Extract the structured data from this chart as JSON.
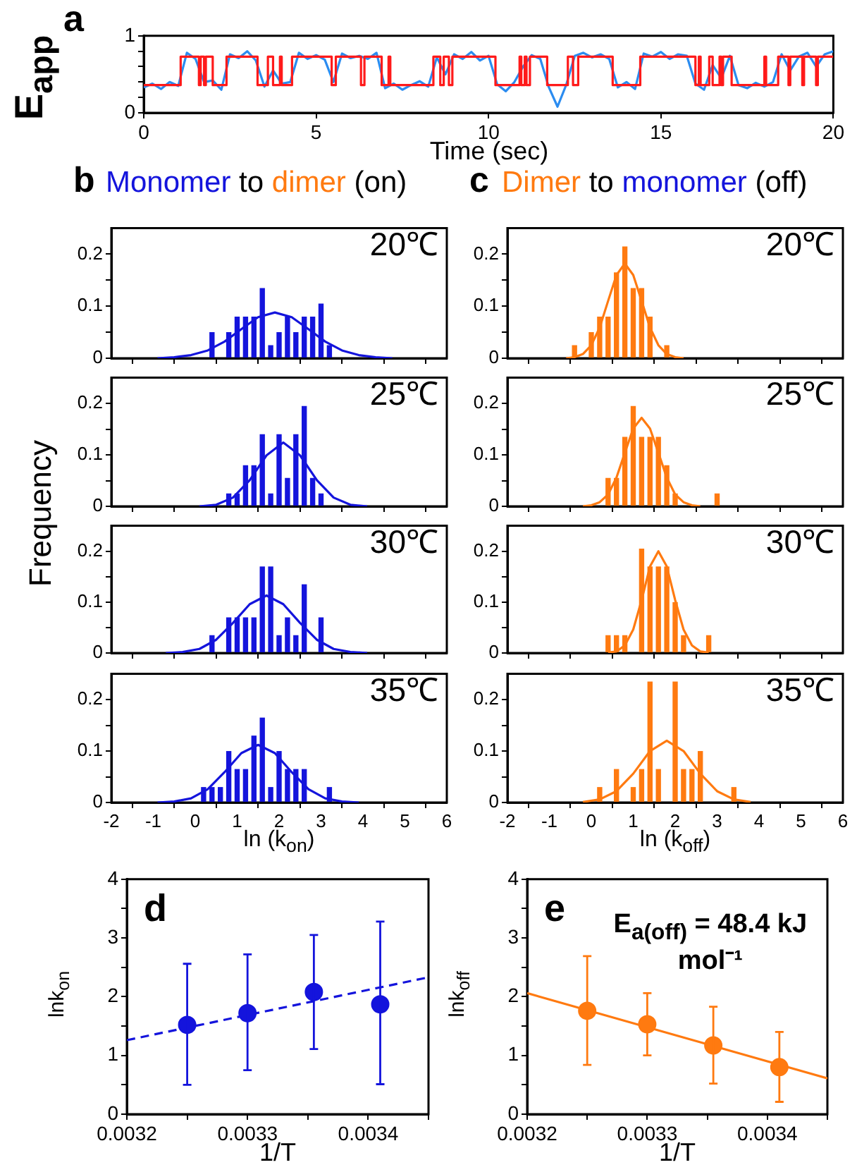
{
  "chart_data": [
    {
      "type": "line",
      "xlabel": "Time (sec)",
      "ylabel": "E$_{app}$",
      "annotations": [
        "a"
      ],
      "xlim": [
        0,
        20
      ],
      "ylim": [
        0,
        1
      ],
      "xticks": [
        0,
        5,
        10,
        15,
        20
      ],
      "yticks": [
        0,
        {
          "value": 0.2,
          "label": null
        },
        {
          "value": 0.4,
          "label": null
        },
        {
          "value": 0.6,
          "label": null
        },
        {
          "value": 0.8,
          "label": null
        },
        1
      ],
      "series": [
        {
          "type": "line",
          "color": "#2b8cf0",
          "x": [
            0,
            0.25,
            0.5,
            0.75,
            1,
            1.25,
            1.5,
            1.75,
            2,
            2.25,
            2.5,
            2.75,
            3,
            3.25,
            3.5,
            3.75,
            4,
            4.25,
            4.5,
            4.75,
            5,
            5.25,
            5.5,
            5.75,
            6,
            6.25,
            6.5,
            6.75,
            7,
            7.25,
            7.5,
            7.75,
            8,
            8.25,
            8.5,
            8.75,
            9,
            9.25,
            9.5,
            9.75,
            10,
            10.25,
            10.5,
            10.75,
            11,
            11.25,
            11.5,
            11.75,
            12,
            12.25,
            12.5,
            12.75,
            13,
            13.25,
            13.5,
            13.75,
            14,
            14.25,
            14.5,
            14.75,
            15,
            15.25,
            15.5,
            15.75,
            16,
            16.25,
            16.5,
            16.75,
            17,
            17.25,
            17.5,
            17.75,
            18,
            18.25,
            18.5,
            18.75,
            19,
            19.25,
            19.5,
            19.75,
            20
          ],
          "values": [
            0.33,
            0.38,
            0.31,
            0.4,
            0.35,
            0.78,
            0.7,
            0.4,
            0.42,
            0.3,
            0.76,
            0.71,
            0.8,
            0.68,
            0.34,
            0.55,
            0.38,
            0.4,
            0.78,
            0.7,
            0.75,
            0.69,
            0.4,
            0.77,
            0.71,
            0.74,
            0.7,
            0.78,
            0.32,
            0.38,
            0.3,
            0.36,
            0.41,
            0.34,
            0.72,
            0.5,
            0.76,
            0.7,
            0.79,
            0.68,
            0.74,
            0.37,
            0.28,
            0.4,
            0.6,
            0.75,
            0.7,
            0.33,
            0.08,
            0.36,
            0.74,
            0.78,
            0.72,
            0.76,
            0.7,
            0.33,
            0.4,
            0.31,
            0.77,
            0.73,
            0.79,
            0.7,
            0.76,
            0.74,
            0.38,
            0.3,
            0.62,
            0.45,
            0.74,
            0.36,
            0.32,
            0.39,
            0.34,
            0.4,
            0.76,
            0.55,
            0.73,
            0.78,
            0.6,
            0.76,
            0.8
          ]
        },
        {
          "type": "step",
          "color": "#ff1a1a",
          "x": [
            0,
            1.07,
            1.6,
            1.65,
            1.75,
            1.8,
            2,
            2.4,
            3.3,
            3.6,
            3.75,
            3.95,
            4,
            4.3,
            5.45,
            5.57,
            6.3,
            6.4,
            6.9,
            7.1,
            7.15,
            8.4,
            8.6,
            8.7,
            8.85,
            8.95,
            10.2,
            10.9,
            10.95,
            11.05,
            11.1,
            11.2,
            11.7,
            12.3,
            12.45,
            12.6,
            13.6,
            14.4,
            16,
            16.1,
            16.15,
            16.4,
            16.5,
            16.7,
            16.75,
            16.8,
            17.05,
            18,
            18.05,
            18.4,
            18.7,
            18.75,
            19.1,
            19.15,
            19.5,
            19.55,
            20
          ],
          "values": [
            0.36,
            0.73,
            0.36,
            0.73,
            0.36,
            0.73,
            0.36,
            0.73,
            0.36,
            0.73,
            0.36,
            0.73,
            0.36,
            0.73,
            0.36,
            0.73,
            0.36,
            0.73,
            0.36,
            0.73,
            0.36,
            0.73,
            0.36,
            0.73,
            0.36,
            0.73,
            0.36,
            0.73,
            0.36,
            0.73,
            0.36,
            0.73,
            0.36,
            0.73,
            0.36,
            0.73,
            0.36,
            0.73,
            0.36,
            0.73,
            0.36,
            0.73,
            0.36,
            0.73,
            0.36,
            0.73,
            0.36,
            0.73,
            0.36,
            0.73,
            0.36,
            0.73,
            0.36,
            0.73,
            0.36,
            0.73,
            0.73
          ]
        }
      ]
    },
    {
      "type": "histogram",
      "title": "Monomer to dimer (on)",
      "ylabel": "Frequency",
      "annotations": [
        "b",
        "20℃"
      ],
      "color": "#1414dc",
      "bins": [
        -0.5,
        -0.3,
        -0.1,
        0.1,
        0.3,
        0.5,
        0.7,
        0.9,
        1.1,
        1.3,
        1.5,
        1.7,
        1.9,
        2.1,
        2.3,
        2.5,
        2.7,
        2.9,
        3.1,
        3.3,
        3.5
      ],
      "values": [
        0,
        0,
        0,
        0,
        0.05,
        0,
        0.05,
        0.08,
        0.08,
        0.08,
        0.135,
        0.025,
        0.05,
        0.08,
        0.05,
        0.08,
        0.08,
        0.105,
        0.025,
        0
      ],
      "series": [
        {
          "type": "line",
          "color": "#1414dc",
          "x": [
            -0.9,
            -0.5,
            -0.1,
            0.3,
            0.7,
            1.1,
            1.5,
            1.9,
            2.3,
            2.7,
            3.1,
            3.5,
            3.9,
            4.3,
            4.7
          ],
          "values": [
            0,
            0.002,
            0.006,
            0.015,
            0.032,
            0.056,
            0.079,
            0.088,
            0.079,
            0.056,
            0.032,
            0.015,
            0.006,
            0.002,
            0
          ]
        }
      ],
      "xlim": [
        -2,
        6
      ],
      "ylim": [
        0,
        0.25
      ],
      "xticks": [
        -2,
        -1,
        0,
        1,
        2,
        3,
        4,
        5,
        6
      ],
      "yticks": [
        0,
        {
          "value": 0.05,
          "label": null
        },
        0.1,
        {
          "value": 0.15,
          "label": null
        },
        0.2
      ],
      "tick_labels": "y"
    },
    {
      "type": "histogram",
      "annotations": [
        "25℃"
      ],
      "color": "#1414dc",
      "bins": [
        -0.5,
        -0.3,
        -0.1,
        0.1,
        0.3,
        0.5,
        0.7,
        0.9,
        1.1,
        1.3,
        1.5,
        1.7,
        1.9,
        2.1,
        2.3,
        2.5,
        2.7,
        2.9,
        3.1,
        3.3,
        3.5
      ],
      "values": [
        0,
        0,
        0,
        0,
        0,
        0,
        0.025,
        0.025,
        0.08,
        0.08,
        0.14,
        0.025,
        0.14,
        0.055,
        0.14,
        0.195,
        0.055,
        0.025,
        0,
        0
      ],
      "series": [
        {
          "type": "line",
          "color": "#1414dc",
          "x": [
            0.1,
            0.5,
            0.9,
            1.3,
            1.7,
            2.1,
            2.5,
            2.9,
            3.3,
            3.7,
            4.1
          ],
          "values": [
            0,
            0.003,
            0.017,
            0.051,
            0.099,
            0.124,
            0.099,
            0.051,
            0.017,
            0.003,
            0
          ]
        }
      ],
      "xlim": [
        -2,
        6
      ],
      "ylim": [
        0,
        0.25
      ],
      "xticks": [
        -2,
        -1,
        0,
        1,
        2,
        3,
        4,
        5,
        6
      ],
      "yticks": [
        0,
        {
          "value": 0.05,
          "label": null
        },
        0.1,
        {
          "value": 0.15,
          "label": null
        },
        0.2
      ],
      "tick_labels": "y"
    },
    {
      "type": "histogram",
      "annotations": [
        "30℃"
      ],
      "color": "#1414dc",
      "bins": [
        -0.5,
        -0.3,
        -0.1,
        0.1,
        0.3,
        0.5,
        0.7,
        0.9,
        1.1,
        1.3,
        1.5,
        1.7,
        1.9,
        2.1,
        2.3,
        2.5,
        2.7,
        2.9,
        3.1,
        3.3,
        3.5
      ],
      "values": [
        0,
        0,
        0,
        0,
        0.035,
        0,
        0.07,
        0.07,
        0.07,
        0.07,
        0.17,
        0.17,
        0.035,
        0.07,
        0.035,
        0.135,
        0,
        0.07,
        0,
        0
      ],
      "series": [
        {
          "type": "line",
          "color": "#1414dc",
          "x": [
            -0.7,
            -0.3,
            0.1,
            0.5,
            0.9,
            1.3,
            1.7,
            2.1,
            2.5,
            2.9,
            3.3,
            3.7,
            4.1
          ],
          "values": [
            0,
            0.002,
            0.008,
            0.026,
            0.059,
            0.096,
            0.113,
            0.096,
            0.059,
            0.026,
            0.008,
            0.002,
            0
          ]
        }
      ],
      "xlim": [
        -2,
        6
      ],
      "ylim": [
        0,
        0.25
      ],
      "xticks": [
        -2,
        -1,
        0,
        1,
        2,
        3,
        4,
        5,
        6
      ],
      "yticks": [
        0,
        {
          "value": 0.05,
          "label": null
        },
        0.1,
        {
          "value": 0.15,
          "label": null
        },
        0.2
      ],
      "tick_labels": "y"
    },
    {
      "type": "histogram",
      "xlabel": "ln (k$_{on}$)",
      "annotations": [
        "35℃"
      ],
      "color": "#1414dc",
      "bins": [
        -0.5,
        -0.3,
        -0.1,
        0.1,
        0.3,
        0.5,
        0.7,
        0.9,
        1.1,
        1.3,
        1.5,
        1.7,
        1.9,
        2.1,
        2.3,
        2.5,
        2.7,
        2.9,
        3.1,
        3.3,
        3.5
      ],
      "values": [
        0,
        0,
        0,
        0.03,
        0.03,
        0.03,
        0.1,
        0.065,
        0.065,
        0.13,
        0.165,
        0.03,
        0.1,
        0.065,
        0.065,
        0.065,
        0,
        0,
        0.03,
        0
      ],
      "series": [
        {
          "type": "line",
          "color": "#1414dc",
          "x": [
            -0.9,
            -0.5,
            -0.1,
            0.3,
            0.7,
            1.1,
            1.5,
            1.9,
            2.3,
            2.7,
            3.1,
            3.5,
            3.9
          ],
          "values": [
            0,
            0.002,
            0.008,
            0.026,
            0.059,
            0.096,
            0.112,
            0.096,
            0.059,
            0.026,
            0.008,
            0.002,
            0
          ]
        }
      ],
      "xlim": [
        -2,
        6
      ],
      "ylim": [
        0,
        0.25
      ],
      "xticks": [
        -2,
        -1,
        0,
        1,
        2,
        3,
        4,
        5,
        6
      ],
      "yticks": [
        0,
        {
          "value": 0.05,
          "label": null
        },
        0.1,
        {
          "value": 0.15,
          "label": null
        },
        0.2
      ]
    },
    {
      "type": "histogram",
      "title": "Dimer to monomer (off)",
      "annotations": [
        "c",
        "20℃"
      ],
      "color": "#ff7a10",
      "bins": [
        -0.5,
        -0.3,
        -0.1,
        0.1,
        0.3,
        0.5,
        0.7,
        0.9,
        1.1,
        1.3,
        1.5,
        1.7,
        1.9,
        2.1,
        2.3,
        2.5,
        2.7,
        2.9,
        3.1,
        3.3,
        3.5
      ],
      "values": [
        0.025,
        0,
        0.05,
        0.08,
        0.08,
        0.165,
        0.215,
        0.135,
        0.135,
        0.08,
        0,
        0.025,
        0,
        0,
        0,
        0,
        0,
        0,
        0,
        0
      ],
      "series": [
        {
          "type": "line",
          "color": "#ff7a10",
          "x": [
            -0.6,
            -0.4,
            -0.2,
            0,
            0.2,
            0.4,
            0.6,
            0.8,
            1,
            1.2,
            1.4,
            1.6,
            1.8,
            2,
            2.2
          ],
          "values": [
            0,
            0.002,
            0.008,
            0.025,
            0.059,
            0.11,
            0.16,
            0.182,
            0.16,
            0.11,
            0.059,
            0.025,
            0.008,
            0.002,
            0
          ]
        }
      ],
      "xlim": [
        -2,
        6
      ],
      "ylim": [
        0,
        0.25
      ],
      "xticks": [
        -2,
        -1,
        0,
        1,
        2,
        3,
        4,
        5,
        6
      ],
      "yticks": [
        0,
        {
          "value": 0.05,
          "label": null
        },
        0.1,
        {
          "value": 0.15,
          "label": null
        },
        0.2
      ],
      "tick_labels": "y"
    },
    {
      "type": "histogram",
      "annotations": [
        "25℃"
      ],
      "color": "#ff7a10",
      "bins": [
        -0.5,
        -0.3,
        -0.1,
        0.1,
        0.3,
        0.5,
        0.7,
        0.9,
        1.1,
        1.3,
        1.5,
        1.7,
        1.9,
        2.1,
        2.3,
        2.5,
        2.7,
        2.9,
        3.1,
        3.3,
        3.5
      ],
      "values": [
        0,
        0,
        0,
        0,
        0.055,
        0.055,
        0.135,
        0.195,
        0.135,
        0.135,
        0.135,
        0.08,
        0.025,
        0,
        0,
        0,
        0,
        0.025,
        0,
        0
      ],
      "series": [
        {
          "type": "line",
          "color": "#ff7a10",
          "x": [
            -0.2,
            0,
            0.2,
            0.4,
            0.6,
            0.8,
            1,
            1.2,
            1.4,
            1.6,
            1.8,
            2,
            2.2,
            2.4,
            2.6
          ],
          "values": [
            0,
            0.002,
            0.008,
            0.023,
            0.056,
            0.104,
            0.151,
            0.172,
            0.151,
            0.104,
            0.056,
            0.023,
            0.008,
            0.002,
            0
          ]
        }
      ],
      "xlim": [
        -2,
        6
      ],
      "ylim": [
        0,
        0.25
      ],
      "xticks": [
        -2,
        -1,
        0,
        1,
        2,
        3,
        4,
        5,
        6
      ],
      "yticks": [
        0,
        {
          "value": 0.05,
          "label": null
        },
        0.1,
        {
          "value": 0.15,
          "label": null
        },
        0.2
      ],
      "tick_labels": "y"
    },
    {
      "type": "histogram",
      "annotations": [
        "30℃"
      ],
      "color": "#ff7a10",
      "bins": [
        -0.5,
        -0.3,
        -0.1,
        0.1,
        0.3,
        0.5,
        0.7,
        0.9,
        1.1,
        1.3,
        1.5,
        1.7,
        1.9,
        2.1,
        2.3,
        2.5,
        2.7,
        2.9,
        3.1,
        3.3,
        3.5
      ],
      "values": [
        0,
        0,
        0,
        0,
        0.035,
        0.035,
        0.035,
        0,
        0.205,
        0.17,
        0.17,
        0.17,
        0.1,
        0.035,
        0,
        0,
        0.035,
        0,
        0,
        0
      ],
      "series": [
        {
          "type": "line",
          "color": "#ff7a10",
          "x": [
            0.4,
            0.6,
            0.8,
            1,
            1.2,
            1.4,
            1.6,
            1.8,
            2,
            2.2,
            2.4,
            2.6,
            2.8
          ],
          "values": [
            0.001,
            0.003,
            0.015,
            0.046,
            0.104,
            0.17,
            0.2,
            0.17,
            0.104,
            0.046,
            0.015,
            0.003,
            0.001
          ]
        }
      ],
      "xlim": [
        -2,
        6
      ],
      "ylim": [
        0,
        0.25
      ],
      "xticks": [
        -2,
        -1,
        0,
        1,
        2,
        3,
        4,
        5,
        6
      ],
      "yticks": [
        0,
        {
          "value": 0.05,
          "label": null
        },
        0.1,
        {
          "value": 0.15,
          "label": null
        },
        0.2
      ],
      "tick_labels": "y"
    },
    {
      "type": "histogram",
      "xlabel": "ln (k$_{off}$)",
      "annotations": [
        "35℃"
      ],
      "color": "#ff7a10",
      "bins": [
        -0.5,
        -0.3,
        -0.1,
        0.1,
        0.3,
        0.5,
        0.7,
        0.9,
        1.1,
        1.3,
        1.5,
        1.7,
        1.9,
        2.1,
        2.3,
        2.5,
        2.7,
        2.9,
        3.1,
        3.3,
        3.5
      ],
      "values": [
        0,
        0,
        0,
        0.03,
        0,
        0.065,
        0,
        0.03,
        0.065,
        0.235,
        0.065,
        0,
        0.235,
        0.065,
        0.065,
        0.1,
        0,
        0,
        0,
        0.03
      ],
      "series": [
        {
          "type": "line",
          "color": "#ff7a10",
          "x": [
            -0.2,
            0.2,
            0.6,
            1,
            1.4,
            1.8,
            2.2,
            2.6,
            3,
            3.4,
            3.8
          ],
          "values": [
            0.001,
            0.006,
            0.022,
            0.056,
            0.1,
            0.12,
            0.1,
            0.056,
            0.022,
            0.006,
            0.001
          ]
        }
      ],
      "xlim": [
        -2,
        6
      ],
      "ylim": [
        0,
        0.25
      ],
      "xticks": [
        -2,
        -1,
        0,
        1,
        2,
        3,
        4,
        5,
        6
      ],
      "yticks": [
        0,
        {
          "value": 0.05,
          "label": null
        },
        0.1,
        {
          "value": 0.15,
          "label": null
        },
        0.2
      ]
    },
    {
      "type": "scatter",
      "xlabel": "1/T",
      "ylabel": "lnk$_{on}$",
      "annotations": [
        "d"
      ],
      "xlim": [
        0.0032,
        0.00345
      ],
      "ylim": [
        0,
        4
      ],
      "xticks": [
        0.0032,
        {
          "value": 0.00325,
          "label": null
        },
        0.0033,
        {
          "value": 0.00335,
          "label": null
        },
        0.0034,
        {
          "value": 0.00345,
          "label": null
        }
      ],
      "yticks": [
        0,
        {
          "value": 0.5,
          "label": null
        },
        1,
        {
          "value": 1.5,
          "label": null
        },
        2,
        {
          "value": 2.5,
          "label": null
        },
        3,
        {
          "value": 3.5,
          "label": null
        },
        4
      ],
      "series": [
        {
          "type": "line",
          "color": "#1414dc",
          "line_style": "dashed",
          "x": [
            0.0032,
            0.00345
          ],
          "values": [
            1.26,
            2.33
          ]
        },
        {
          "type": "scatter",
          "color": "#1414dc",
          "marker": "circle",
          "x": [
            0.00325,
            0.0033,
            0.003355,
            0.00341
          ],
          "values": [
            1.52,
            1.72,
            2.08,
            1.87
          ],
          "errors": [
            [
              0.5,
              2.56
            ],
            [
              0.75,
              2.72
            ],
            [
              1.11,
              3.05
            ],
            [
              0.51,
              3.28
            ]
          ]
        }
      ]
    },
    {
      "type": "scatter",
      "xlabel": "1/T",
      "ylabel": "lnk$_{off}$",
      "annotations": [
        "e",
        "E$_{a(off)}$ = 48.4 kJ mol⁻¹"
      ],
      "xlim": [
        0.0032,
        0.00345
      ],
      "ylim": [
        0,
        4
      ],
      "xticks": [
        0.0032,
        {
          "value": 0.00325,
          "label": null
        },
        0.0033,
        {
          "value": 0.00335,
          "label": null
        },
        0.0034,
        {
          "value": 0.00345,
          "label": null
        }
      ],
      "yticks": [
        0,
        {
          "value": 0.5,
          "label": null
        },
        1,
        {
          "value": 1.5,
          "label": null
        },
        2,
        {
          "value": 2.5,
          "label": null
        },
        3,
        {
          "value": 3.5,
          "label": null
        },
        4
      ],
      "series": [
        {
          "type": "line",
          "color": "#ff7a10",
          "line_style": "solid",
          "x": [
            0.0032,
            0.00345
          ],
          "values": [
            2.06,
            0.61
          ]
        },
        {
          "type": "scatter",
          "color": "#ff7a10",
          "marker": "circle",
          "x": [
            0.00325,
            0.0033,
            0.003355,
            0.00341
          ],
          "values": [
            1.76,
            1.53,
            1.17,
            0.8
          ],
          "errors": [
            [
              0.84,
              2.69
            ],
            [
              1.0,
              2.06
            ],
            [
              0.52,
              1.83
            ],
            [
              0.21,
              1.4
            ]
          ]
        }
      ]
    }
  ]
}
